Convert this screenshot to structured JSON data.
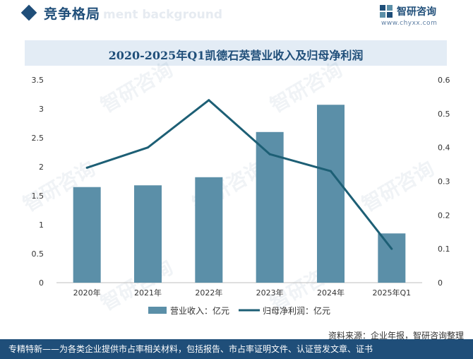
{
  "header": {
    "section_title": "竞争格局",
    "bg_watermark": "ment background",
    "logo_name": "智研咨询",
    "logo_url": "www.chyxx.com"
  },
  "source": "资料来源：企业年报，智研咨询整理",
  "footer": "专精特新——为各类企业提供市占率相关材料，包括报告、市占率证明文件、认证营发文章、证书",
  "watermark_text": "智研咨询",
  "colors": {
    "bar": "#5b8fa8",
    "line": "#1d5f75",
    "brand": "#1f4e79"
  },
  "chart_data": {
    "type": "bar",
    "title": "2020-2025年Q1凯德石英营业收入及归母净利润",
    "categories": [
      "2020年",
      "2021年",
      "2022年",
      "2023年",
      "2024年",
      "2025年Q1"
    ],
    "series": [
      {
        "name": "营业收入：亿元",
        "type": "bar",
        "axis": "left",
        "values": [
          1.65,
          1.68,
          1.82,
          2.6,
          3.07,
          0.85
        ]
      },
      {
        "name": "归母净利润：亿元",
        "type": "line",
        "axis": "right",
        "values": [
          0.34,
          0.4,
          0.54,
          0.38,
          0.33,
          0.1
        ]
      }
    ],
    "y_left": {
      "min": 0,
      "max": 3.5,
      "ticks": [
        "0",
        "0.5",
        "1",
        "1.5",
        "2",
        "2.5",
        "3",
        "3.5"
      ]
    },
    "y_right": {
      "min": 0,
      "max": 0.6,
      "ticks": [
        "0",
        "0.1",
        "0.2",
        "0.3",
        "0.4",
        "0.5",
        "0.6"
      ]
    },
    "grid": false,
    "legend": "bottom-center"
  }
}
